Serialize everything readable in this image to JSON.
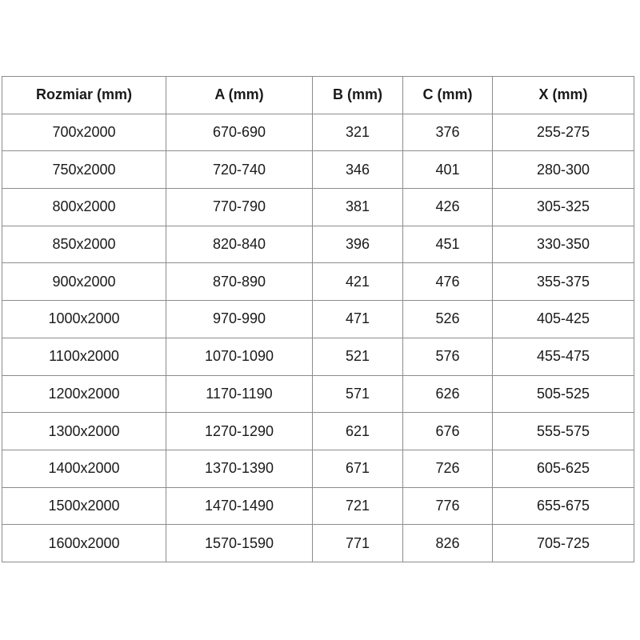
{
  "table": {
    "columns": [
      "Rozmiar (mm)",
      "A (mm)",
      "B (mm)",
      "C (mm)",
      "X (mm)"
    ],
    "rows": [
      [
        "700x2000",
        "670-690",
        "321",
        "376",
        "255-275"
      ],
      [
        "750x2000",
        "720-740",
        "346",
        "401",
        "280-300"
      ],
      [
        "800x2000",
        "770-790",
        "381",
        "426",
        "305-325"
      ],
      [
        "850x2000",
        "820-840",
        "396",
        "451",
        "330-350"
      ],
      [
        "900x2000",
        "870-890",
        "421",
        "476",
        "355-375"
      ],
      [
        "1000x2000",
        "970-990",
        "471",
        "526",
        "405-425"
      ],
      [
        "1100x2000",
        "1070-1090",
        "521",
        "576",
        "455-475"
      ],
      [
        "1200x2000",
        "1170-1190",
        "571",
        "626",
        "505-525"
      ],
      [
        "1300x2000",
        "1270-1290",
        "621",
        "676",
        "555-575"
      ],
      [
        "1400x2000",
        "1370-1390",
        "671",
        "726",
        "605-625"
      ],
      [
        "1500x2000",
        "1470-1490",
        "721",
        "776",
        "655-675"
      ],
      [
        "1600x2000",
        "1570-1590",
        "771",
        "826",
        "705-725"
      ]
    ],
    "colors": {
      "grid_border": "#8c8c8c",
      "outer_border": "#595959",
      "text": "#1a1a1a",
      "background": "#ffffff"
    }
  }
}
